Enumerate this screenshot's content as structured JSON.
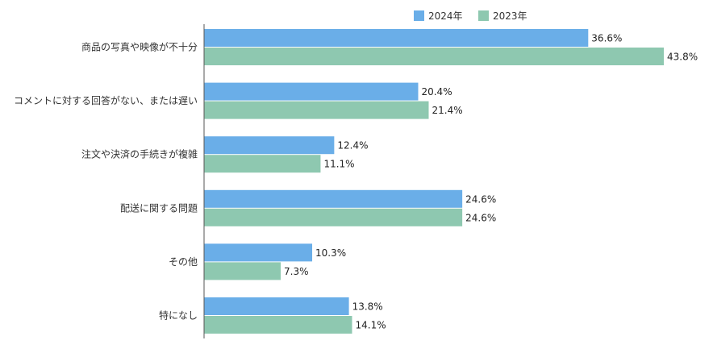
{
  "chart_data": {
    "type": "bar",
    "orientation": "horizontal",
    "categories": [
      "商品の写真や映像が不十分",
      "コメントに対する回答がない、または遅い",
      "注文や決済の手続きが複雑",
      "配送に関する問題",
      "その他",
      "特になし"
    ],
    "series": [
      {
        "name": "2024年",
        "color": "#6aaee8",
        "values": [
          36.6,
          20.4,
          12.4,
          24.6,
          10.3,
          13.8
        ],
        "labels": [
          "36.6%",
          "20.4%",
          "12.4%",
          "24.6%",
          "10.3%",
          "13.8%"
        ]
      },
      {
        "name": "2023年",
        "color": "#8ec8b0",
        "values": [
          43.8,
          21.4,
          11.1,
          24.6,
          7.3,
          14.1
        ],
        "labels": [
          "43.8%",
          "21.4%",
          "11.1%",
          "24.6%",
          "7.3%",
          "14.1%"
        ]
      }
    ],
    "xlim": [
      0,
      43.8
    ],
    "grid": false,
    "legend_position": "top"
  }
}
